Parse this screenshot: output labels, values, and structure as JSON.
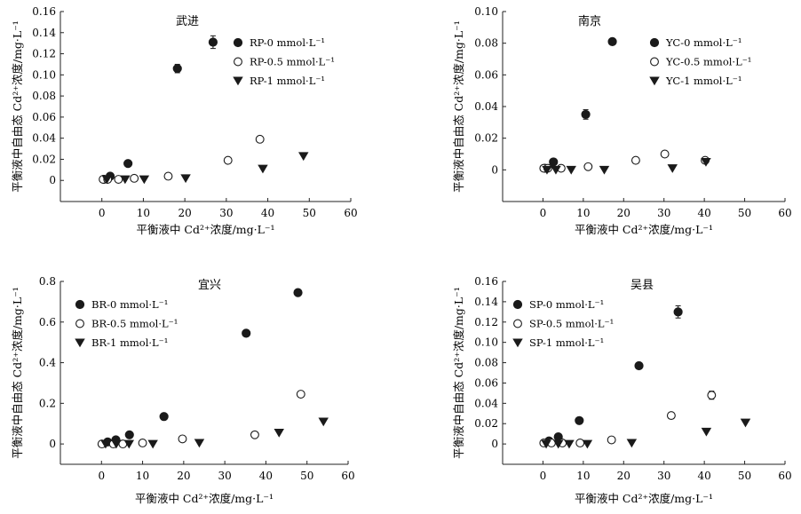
{
  "panels": [
    {
      "title": "武进",
      "xlabel": "平衡液中 Cd²⁺浓度/mg·L⁻¹",
      "ylabel": "平衡液中自由态 Cd²⁺浓度/mg·L⁻¹",
      "chart_data": {
        "type": "scatter",
        "title": "武进",
        "xlabel": "平衡液中 Cd²⁺浓度/mg·L⁻¹",
        "ylabel": "平衡液中自由态 Cd²⁺浓度/mg·L⁻¹",
        "xlim": [
          -10,
          60
        ],
        "ylim": [
          -0.02,
          0.16
        ],
        "xticks": [
          0,
          10,
          20,
          30,
          40,
          50,
          60
        ],
        "yticks": [
          0,
          0.02,
          0.04,
          0.06,
          0.08,
          0.1,
          0.12,
          0.14,
          0.16
        ],
        "ytick_labels": [
          "0",
          "0.02",
          "0.04",
          "0.06",
          "0.08",
          "0.10",
          "0.12",
          "0.14",
          "0.16"
        ],
        "legend_position": "top-right",
        "series": [
          {
            "name": "RP-0 mmol·L⁻¹",
            "marker": "filled-circle",
            "x": [
              0.5,
              2,
              6.3,
              18.2,
              26.8
            ],
            "y": [
              0.001,
              0.004,
              0.016,
              0.106,
              0.131
            ],
            "err": [
              0,
              0,
              0,
              0.004,
              0.006
            ]
          },
          {
            "name": "RP-0.5 mmol·L⁻¹",
            "marker": "open-circle",
            "x": [
              0.3,
              1.4,
              4,
              7.8,
              16,
              30.4,
              38.1
            ],
            "y": [
              0.001,
              0.001,
              0.001,
              0.002,
              0.004,
              0.019,
              0.039
            ],
            "err": [
              0,
              0,
              0,
              0,
              0,
              0,
              0
            ]
          },
          {
            "name": "RP-1 mmol·L⁻¹",
            "marker": "down-triangle",
            "x": [
              1.2,
              5.6,
              10.2,
              20.2,
              38.8,
              48.6
            ],
            "y": [
              0.001,
              0.001,
              0.001,
              0.002,
              0.011,
              0.023
            ],
            "err": [
              0,
              0,
              0,
              0,
              0,
              0
            ]
          }
        ]
      }
    },
    {
      "title": "南京",
      "xlabel": "平衡液中 Cd²⁺浓度/mg·L⁻¹",
      "ylabel": "平衡液中自由态 Cd²⁺浓度/mg·L⁻¹",
      "chart_data": {
        "type": "scatter",
        "title": "南京",
        "xlabel": "平衡液中 Cd²⁺浓度/mg·L⁻¹",
        "ylabel": "平衡液中自由态 Cd²⁺浓度/mg·L⁻¹",
        "xlim": [
          -10,
          60
        ],
        "ylim": [
          -0.02,
          0.1
        ],
        "xticks": [
          0,
          10,
          20,
          30,
          40,
          50,
          60
        ],
        "yticks": [
          0,
          0.02,
          0.04,
          0.06,
          0.08,
          0.1
        ],
        "ytick_labels": [
          "0",
          "0.02",
          "0.04",
          "0.06",
          "0.08",
          "0.10"
        ],
        "legend_position": "top-right",
        "series": [
          {
            "name": "YC-0 mmol·L⁻¹",
            "marker": "filled-circle",
            "x": [
              0.5,
              2.6,
              10.6,
              17.2
            ],
            "y": [
              0.001,
              0.005,
              0.035,
              0.081
            ],
            "err": [
              0,
              0,
              0.003,
              0
            ]
          },
          {
            "name": "YC-0.5 mmol·L⁻¹",
            "marker": "open-circle",
            "x": [
              0.2,
              1.2,
              4.5,
              11.2,
              23,
              30.2,
              40.2
            ],
            "y": [
              0.001,
              0.001,
              0.001,
              0.002,
              0.006,
              0.01,
              0.006
            ],
            "err": [
              0,
              0,
              0,
              0,
              0,
              0,
              0
            ]
          },
          {
            "name": "YC-1 mmol·L⁻¹",
            "marker": "down-triangle",
            "x": [
              1,
              3.2,
              7,
              15.2,
              32.1,
              40.4
            ],
            "y": [
              0,
              0,
              0,
              0,
              0.001,
              0.005
            ],
            "err": [
              0,
              0,
              0,
              0,
              0,
              0
            ]
          }
        ]
      }
    },
    {
      "title": "宜兴",
      "xlabel": "平衡液中 Cd²⁺浓度/mg·L⁻¹",
      "ylabel": "平衡液中自由态 Cd²⁺浓度/mg·L⁻¹",
      "chart_data": {
        "type": "scatter",
        "title": "宜兴",
        "xlabel": "平衡液中 Cd²⁺浓度/mg·L⁻¹",
        "ylabel": "平衡液中自由态 Cd²⁺浓度/mg·L⁻¹",
        "xlim": [
          -10,
          60
        ],
        "ylim": [
          -0.1,
          0.8
        ],
        "xticks": [
          0,
          10,
          20,
          30,
          40,
          50,
          60
        ],
        "yticks": [
          0,
          0.2,
          0.4,
          0.6,
          0.8
        ],
        "ytick_labels": [
          "0",
          "0.2",
          "0.4",
          "0.6",
          "0.8"
        ],
        "legend_position": "top-left",
        "series": [
          {
            "name": "BR-0 mmol·L⁻¹",
            "marker": "filled-circle",
            "x": [
              1.5,
              3.5,
              6.8,
              15.2,
              35.2,
              47.8
            ],
            "y": [
              0.01,
              0.02,
              0.045,
              0.135,
              0.545,
              0.745
            ],
            "err": [
              0,
              0,
              0,
              0,
              0,
              0
            ]
          },
          {
            "name": "BR-0.5 mmol·L⁻¹",
            "marker": "open-circle",
            "x": [
              0.1,
              2.9,
              5.2,
              10,
              19.7,
              37.3,
              48.5
            ],
            "y": [
              0,
              0,
              0,
              0.005,
              0.025,
              0.045,
              0.245
            ],
            "err": [
              0,
              0,
              0,
              0,
              0,
              0,
              0
            ]
          },
          {
            "name": "BR-1 mmol·L⁻¹",
            "marker": "down-triangle",
            "x": [
              1,
              3.6,
              6.7,
              12.5,
              23.8,
              43.2,
              54
            ],
            "y": [
              0,
              0,
              0,
              0,
              0.005,
              0.055,
              0.11
            ],
            "err": [
              0,
              0,
              0,
              0,
              0,
              0,
              0
            ]
          }
        ]
      }
    },
    {
      "title": "吴县",
      "xlabel": "平衡液中 Cd²⁺浓度/mg·L⁻¹",
      "ylabel": "平衡液中自由态 Cd²⁺浓度/mg·L⁻¹",
      "chart_data": {
        "type": "scatter",
        "title": "吴县",
        "xlabel": "平衡液中 Cd²⁺浓度/mg·L⁻¹",
        "ylabel": "平衡液中自由态 Cd²⁺浓度/mg·L⁻¹",
        "xlim": [
          -10,
          60
        ],
        "ylim": [
          -0.02,
          0.16
        ],
        "xticks": [
          0,
          10,
          20,
          30,
          40,
          50,
          60
        ],
        "yticks": [
          0,
          0.02,
          0.04,
          0.06,
          0.08,
          0.1,
          0.12,
          0.14,
          0.16
        ],
        "ytick_labels": [
          "0",
          "0.02",
          "0.04",
          "0.06",
          "0.08",
          "0.10",
          "0.12",
          "0.14",
          "0.16"
        ],
        "legend_position": "top-left",
        "series": [
          {
            "name": "SP-0 mmol·L⁻¹",
            "marker": "filled-circle",
            "x": [
              1.5,
              3.8,
              9,
              23.8,
              33.5
            ],
            "y": [
              0.003,
              0.007,
              0.023,
              0.077,
              0.13
            ],
            "err": [
              0,
              0,
              0,
              0.003,
              0.006
            ]
          },
          {
            "name": "SP-0.5 mmol·L⁻¹",
            "marker": "open-circle",
            "x": [
              0.2,
              2.1,
              4.8,
              9.2,
              17,
              31.8,
              41.8
            ],
            "y": [
              0.001,
              0.001,
              0.001,
              0.001,
              0.004,
              0.028,
              0.048
            ],
            "err": [
              0,
              0,
              0,
              0,
              0,
              0,
              0.004
            ]
          },
          {
            "name": "SP-1 mmol·L⁻¹",
            "marker": "down-triangle",
            "x": [
              0.8,
              3.8,
              6.5,
              11,
              22,
              40.5,
              50.2
            ],
            "y": [
              0,
              0,
              0,
              0,
              0.001,
              0.012,
              0.021
            ],
            "err": [
              0,
              0,
              0,
              0,
              0,
              0,
              0
            ]
          }
        ]
      }
    }
  ]
}
